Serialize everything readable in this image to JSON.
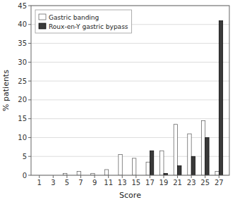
{
  "chart_data": {
    "type": "bar",
    "x": [
      1,
      3,
      5,
      7,
      9,
      11,
      13,
      15,
      17,
      19,
      21,
      23,
      25,
      27
    ],
    "series": [
      {
        "name": "Gastric banding",
        "color": "#ffffff",
        "values": [
          0,
          0,
          0.5,
          1.0,
          0.5,
          1.5,
          5.5,
          4.5,
          3.5,
          6.5,
          13.5,
          11.0,
          14.5,
          1.0
        ]
      },
      {
        "name": "Roux-en-Y gastric bypass",
        "color": "#3a3a3a",
        "values": [
          0,
          0,
          0,
          0,
          0,
          0,
          0,
          0,
          6.5,
          0.5,
          2.5,
          5.0,
          10.0,
          41.0
        ]
      }
    ],
    "xlabel": "Score",
    "ylabel": "% patients",
    "xlim": [
      -0.2,
      28.5
    ],
    "xticks": [
      1,
      3,
      5,
      7,
      9,
      11,
      13,
      15,
      17,
      19,
      21,
      23,
      25,
      27
    ],
    "ylim": [
      0,
      45
    ],
    "yticks": [
      0,
      5,
      10,
      15,
      20,
      25,
      30,
      35,
      40,
      45
    ],
    "grid": true,
    "legend": "upper left"
  }
}
